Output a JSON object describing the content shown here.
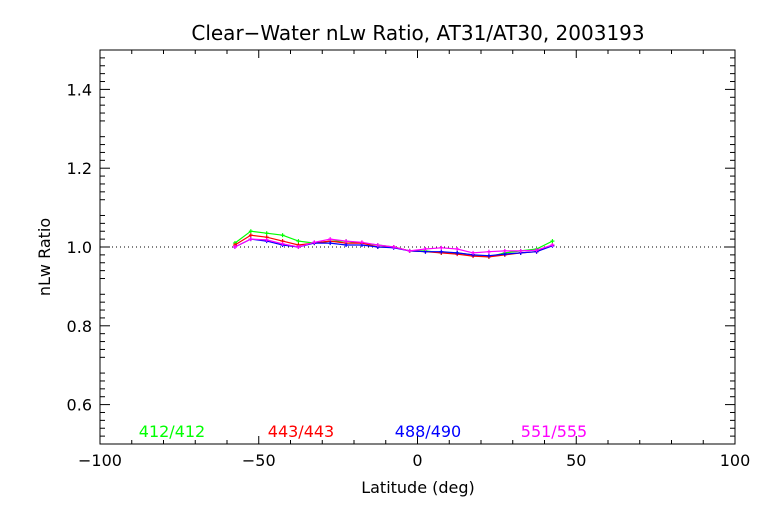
{
  "chart_data": {
    "type": "line",
    "title": "Clear−Water nLw Ratio, AT31/AT30, 2003193",
    "xlabel": "Latitude (deg)",
    "ylabel": "nLw Ratio",
    "xlim": [
      -100,
      100
    ],
    "ylim": [
      0.5,
      1.5
    ],
    "xticks": [
      -100,
      -50,
      0,
      50,
      100
    ],
    "xtick_labels": [
      "−100",
      "−50",
      "0",
      "50",
      "100"
    ],
    "yticks": [
      0.6,
      0.8,
      1.0,
      1.2,
      1.4
    ],
    "ytick_labels": [
      "0.6",
      "0.8",
      "1.0",
      "1.2",
      "1.4"
    ],
    "reference_line": 1.0,
    "x": [
      -57.5,
      -52.5,
      -47.5,
      -42.5,
      -37.5,
      -32.5,
      -27.5,
      -22.5,
      -17.5,
      -12.5,
      -7.5,
      -2.5,
      2.5,
      7.5,
      12.5,
      17.5,
      22.5,
      27.5,
      32.5,
      37.5,
      42.5
    ],
    "series": [
      {
        "name": "412/412",
        "color": "#00ff00",
        "values": [
          1.01,
          1.04,
          1.035,
          1.03,
          1.015,
          1.01,
          1.015,
          1.015,
          1.01,
          1.005,
          1.0,
          0.99,
          0.99,
          0.985,
          0.985,
          0.98,
          0.975,
          0.985,
          0.99,
          0.995,
          1.015
        ]
      },
      {
        "name": "443/443",
        "color": "#ff0000",
        "values": [
          1.005,
          1.03,
          1.025,
          1.015,
          1.005,
          1.01,
          1.015,
          1.01,
          1.01,
          1.0,
          1.0,
          0.99,
          0.988,
          0.985,
          0.982,
          0.977,
          0.975,
          0.98,
          0.985,
          0.988,
          1.005
        ]
      },
      {
        "name": "488/490",
        "color": "#0000ff",
        "values": [
          1.0,
          1.02,
          1.015,
          1.005,
          1.0,
          1.01,
          1.01,
          1.005,
          1.005,
          1.0,
          0.998,
          0.99,
          0.988,
          0.988,
          0.985,
          0.98,
          0.978,
          0.982,
          0.985,
          0.988,
          1.003
        ]
      },
      {
        "name": "551/555",
        "color": "#ff00ff",
        "values": [
          1.0,
          1.02,
          1.018,
          1.008,
          1.0,
          1.012,
          1.02,
          1.015,
          1.012,
          1.005,
          1.0,
          0.99,
          0.995,
          0.998,
          0.995,
          0.985,
          0.988,
          0.99,
          0.99,
          0.992,
          1.005
        ]
      }
    ]
  }
}
